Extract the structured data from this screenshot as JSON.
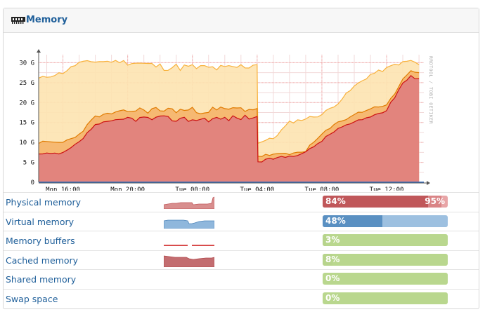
{
  "panel": {
    "title": "Memory",
    "icon": "memory-module-icon"
  },
  "chart_data": {
    "type": "area",
    "title": "",
    "xlabel": "",
    "ylabel": "",
    "ylim": [
      0,
      32
    ],
    "yticks": [
      "0",
      "5 G",
      "10 G",
      "15 G",
      "20 G",
      "25 G",
      "30 G"
    ],
    "ytick_values": [
      0,
      5,
      10,
      15,
      20,
      25,
      30
    ],
    "xticks": [
      "Mon 16:00",
      "Mon 20:00",
      "Tue 00:00",
      "Tue 04:00",
      "Tue 08:00",
      "Tue 12:00"
    ],
    "xtick_hours": [
      16,
      20,
      24,
      28,
      32,
      36
    ],
    "xlim_hours": [
      14.5,
      38.3
    ],
    "grid": true,
    "watermark": "RRDTOOL / TOBI OETIKER",
    "colors": {
      "physical": "#e07e7e",
      "physical_line": "#cc1111",
      "cached": "#f5b46a",
      "cached_line": "#e07b00",
      "virtual": "#fde3b0",
      "virtual_line": "#f8b13b",
      "baseline": "#3b6fbd"
    },
    "series": [
      {
        "name": "virtual",
        "x": [
          14.5,
          16.0,
          17.0,
          18.0,
          20.0,
          22.0,
          24.0,
          26.0,
          28.0,
          28.05,
          29.0,
          30.0,
          31.0,
          32.0,
          33.0,
          34.0,
          35.0,
          36.0,
          36.5,
          37.0,
          37.5,
          38.0
        ],
        "values": [
          26.0,
          27.5,
          30.0,
          30.3,
          30.3,
          29.0,
          28.8,
          28.5,
          29.5,
          10.0,
          11.0,
          15.0,
          16.0,
          17.0,
          20.0,
          24.0,
          27.0,
          28.5,
          29.5,
          30.0,
          30.5,
          29.5
        ]
      },
      {
        "name": "cached",
        "x": [
          14.5,
          16.0,
          17.0,
          18.0,
          20.0,
          22.0,
          24.0,
          26.0,
          28.0,
          28.05,
          29.0,
          30.0,
          31.0,
          32.0,
          33.0,
          34.0,
          35.0,
          36.0,
          36.5,
          37.0,
          37.5,
          38.0
        ],
        "values": [
          10.0,
          10.0,
          12.0,
          16.5,
          18.0,
          18.2,
          18.0,
          18.2,
          18.5,
          6.5,
          7.0,
          7.0,
          8.0,
          12.0,
          15.0,
          17.0,
          18.5,
          19.5,
          22.0,
          26.0,
          28.0,
          27.5
        ]
      },
      {
        "name": "physical",
        "x": [
          14.5,
          16.0,
          17.0,
          18.0,
          20.0,
          22.0,
          24.0,
          26.0,
          28.0,
          28.05,
          29.0,
          30.0,
          31.0,
          32.0,
          33.0,
          34.0,
          35.0,
          36.0,
          36.5,
          37.0,
          37.5,
          38.0
        ],
        "values": [
          7.0,
          7.2,
          10.0,
          14.5,
          16.0,
          16.0,
          15.8,
          16.0,
          16.5,
          5.0,
          6.0,
          6.5,
          7.5,
          10.5,
          13.5,
          15.0,
          16.5,
          18.0,
          21.5,
          25.0,
          26.5,
          26.0
        ]
      }
    ]
  },
  "rows": [
    {
      "label": "Physical memory",
      "spark": "physical",
      "value_pct": 84,
      "value_text": "84%",
      "total_pct": 95,
      "total_text": "95%",
      "bar": "red"
    },
    {
      "label": "Virtual memory",
      "spark": "virtual",
      "value_pct": 48,
      "value_text": "48%",
      "bar": "blue"
    },
    {
      "label": "Memory buffers",
      "spark": "buffers",
      "value_pct": 3,
      "value_text": "3%",
      "bar": "green"
    },
    {
      "label": "Cached memory",
      "spark": "cached",
      "value_pct": 8,
      "value_text": "8%",
      "bar": "green"
    },
    {
      "label": "Shared memory",
      "spark": "none",
      "value_pct": 0,
      "value_text": "0%",
      "bar": "green"
    },
    {
      "label": "Swap space",
      "spark": "none",
      "value_pct": 0,
      "value_text": "0%",
      "bar": "green"
    }
  ],
  "bar_colors": {
    "red": {
      "fill": "#c0575a",
      "back": "#e8a5a7"
    },
    "blue": {
      "fill": "#5a90c2",
      "back": "#9dc0e0"
    },
    "green": {
      "fill": "#b7d48c",
      "back": "#b9d78e"
    }
  }
}
